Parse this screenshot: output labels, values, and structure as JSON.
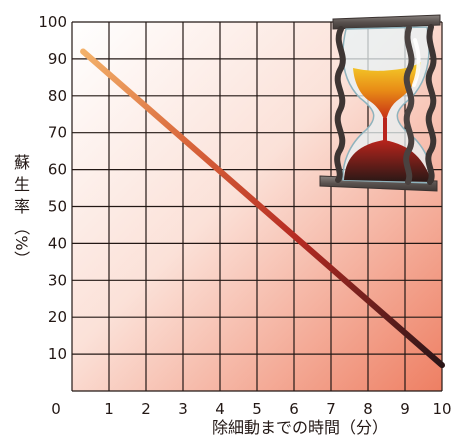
{
  "chart_data": {
    "type": "line",
    "x": [
      0.3,
      10
    ],
    "series": [
      {
        "values": [
          92,
          7
        ]
      }
    ],
    "xlim": [
      0,
      10
    ],
    "ylim": [
      0,
      100
    ],
    "x_ticks": [
      "1",
      "2",
      "3",
      "4",
      "5",
      "6",
      "7",
      "8",
      "9",
      "10"
    ],
    "y_ticks": [
      "10",
      "20",
      "30",
      "40",
      "50",
      "60",
      "70",
      "80",
      "90",
      "100"
    ],
    "origin_label": "0",
    "xlabel": "除細動までの時間（分）",
    "ylabel_chars": [
      "蘇",
      "生",
      "率"
    ],
    "ylabel_unit": "（%）",
    "grid": true,
    "line_gradient": [
      "#f3b16a",
      "#d8643a",
      "#b52a22",
      "#2a1518"
    ],
    "background_gradient": [
      "#ffffff",
      "#ee7f63"
    ],
    "decoration": "hourglass-icon"
  }
}
